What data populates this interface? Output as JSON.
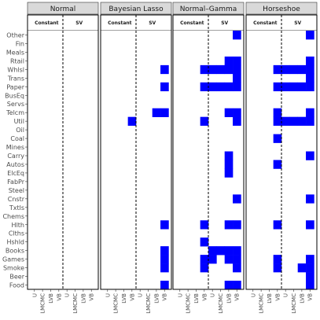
{
  "chart_data": {
    "type": "heatmap",
    "panels": [
      "Normal",
      "Bayesian Lasso",
      "Normal–Gamma",
      "Horseshoe"
    ],
    "subgroups": [
      "Constant",
      "SV"
    ],
    "x_categories": [
      "U",
      "LMCMC",
      "LVB",
      "VB",
      "U",
      "LMCMC",
      "LVB",
      "VB"
    ],
    "industries": [
      "Other",
      "Fin",
      "Meals",
      "Rtail",
      "Whlsl",
      "Trans",
      "Paper",
      "BusEq",
      "Servs",
      "Telcm",
      "Util",
      "Oil",
      "Coal",
      "Mines",
      "Carry",
      "Autos",
      "ElcEq",
      "FabPr",
      "Steel",
      "Cnstr",
      "Txtls",
      "Chems",
      "Hlth",
      "Clths",
      "Hshld",
      "Books",
      "Games",
      "Smoke",
      "Beer",
      "Food"
    ],
    "fill_color": "#0000ff",
    "empty_color": "#ffffff",
    "selected_cells": [
      [],
      [
        {
          "row": "Whlsl",
          "col": 7
        },
        {
          "row": "Paper",
          "col": 7
        },
        {
          "row": "Telcm",
          "col": 6
        },
        {
          "row": "Telcm",
          "col": 7
        },
        {
          "row": "Util",
          "col": 3
        },
        {
          "row": "Hlth",
          "col": 7
        },
        {
          "row": "Books",
          "col": 7
        },
        {
          "row": "Games",
          "col": 7
        },
        {
          "row": "Smoke",
          "col": 7
        },
        {
          "row": "Food",
          "col": 7
        }
      ],
      [
        {
          "row": "Other",
          "col": 7
        },
        {
          "row": "Rtail",
          "col": 6
        },
        {
          "row": "Rtail",
          "col": 7
        },
        {
          "row": "Whlsl",
          "col": 3
        },
        {
          "row": "Whlsl",
          "col": 4
        },
        {
          "row": "Whlsl",
          "col": 5
        },
        {
          "row": "Whlsl",
          "col": 6
        },
        {
          "row": "Whlsl",
          "col": 7
        },
        {
          "row": "Trans",
          "col": 7
        },
        {
          "row": "Paper",
          "col": 3
        },
        {
          "row": "Paper",
          "col": 4
        },
        {
          "row": "Paper",
          "col": 5
        },
        {
          "row": "Paper",
          "col": 6
        },
        {
          "row": "Paper",
          "col": 7
        },
        {
          "row": "Telcm",
          "col": 6
        },
        {
          "row": "Telcm",
          "col": 7
        },
        {
          "row": "Util",
          "col": 3
        },
        {
          "row": "Util",
          "col": 7
        },
        {
          "row": "Carry",
          "col": 6
        },
        {
          "row": "Autos",
          "col": 6
        },
        {
          "row": "ElcEq",
          "col": 6
        },
        {
          "row": "Cnstr",
          "col": 7
        },
        {
          "row": "Hlth",
          "col": 3
        },
        {
          "row": "Hlth",
          "col": 6
        },
        {
          "row": "Hlth",
          "col": 7
        },
        {
          "row": "Hshld",
          "col": 3
        },
        {
          "row": "Books",
          "col": 4
        },
        {
          "row": "Books",
          "col": 5
        },
        {
          "row": "Books",
          "col": 6
        },
        {
          "row": "Books",
          "col": 7
        },
        {
          "row": "Games",
          "col": 3
        },
        {
          "row": "Games",
          "col": 4
        },
        {
          "row": "Games",
          "col": 6
        },
        {
          "row": "Games",
          "col": 7
        },
        {
          "row": "Smoke",
          "col": 3
        },
        {
          "row": "Smoke",
          "col": 7
        },
        {
          "row": "Food",
          "col": 6
        },
        {
          "row": "Food",
          "col": 7
        }
      ],
      [
        {
          "row": "Other",
          "col": 7
        },
        {
          "row": "Rtail",
          "col": 7
        },
        {
          "row": "Whlsl",
          "col": 3
        },
        {
          "row": "Whlsl",
          "col": 4
        },
        {
          "row": "Whlsl",
          "col": 5
        },
        {
          "row": "Whlsl",
          "col": 6
        },
        {
          "row": "Whlsl",
          "col": 7
        },
        {
          "row": "Trans",
          "col": 7
        },
        {
          "row": "Paper",
          "col": 3
        },
        {
          "row": "Paper",
          "col": 4
        },
        {
          "row": "Paper",
          "col": 5
        },
        {
          "row": "Paper",
          "col": 6
        },
        {
          "row": "Paper",
          "col": 7
        },
        {
          "row": "Telcm",
          "col": 3
        },
        {
          "row": "Telcm",
          "col": 7
        },
        {
          "row": "Util",
          "col": 3
        },
        {
          "row": "Util",
          "col": 4
        },
        {
          "row": "Util",
          "col": 5
        },
        {
          "row": "Util",
          "col": 6
        },
        {
          "row": "Util",
          "col": 7
        },
        {
          "row": "Coal",
          "col": 3
        },
        {
          "row": "Carry",
          "col": 7
        },
        {
          "row": "Autos",
          "col": 3
        },
        {
          "row": "Cnstr",
          "col": 7
        },
        {
          "row": "Hlth",
          "col": 3
        },
        {
          "row": "Hlth",
          "col": 7
        },
        {
          "row": "Games",
          "col": 3
        },
        {
          "row": "Games",
          "col": 7
        },
        {
          "row": "Smoke",
          "col": 3
        },
        {
          "row": "Smoke",
          "col": 6
        },
        {
          "row": "Smoke",
          "col": 7
        },
        {
          "row": "Beer",
          "col": 7
        },
        {
          "row": "Food",
          "col": 7
        }
      ]
    ]
  }
}
